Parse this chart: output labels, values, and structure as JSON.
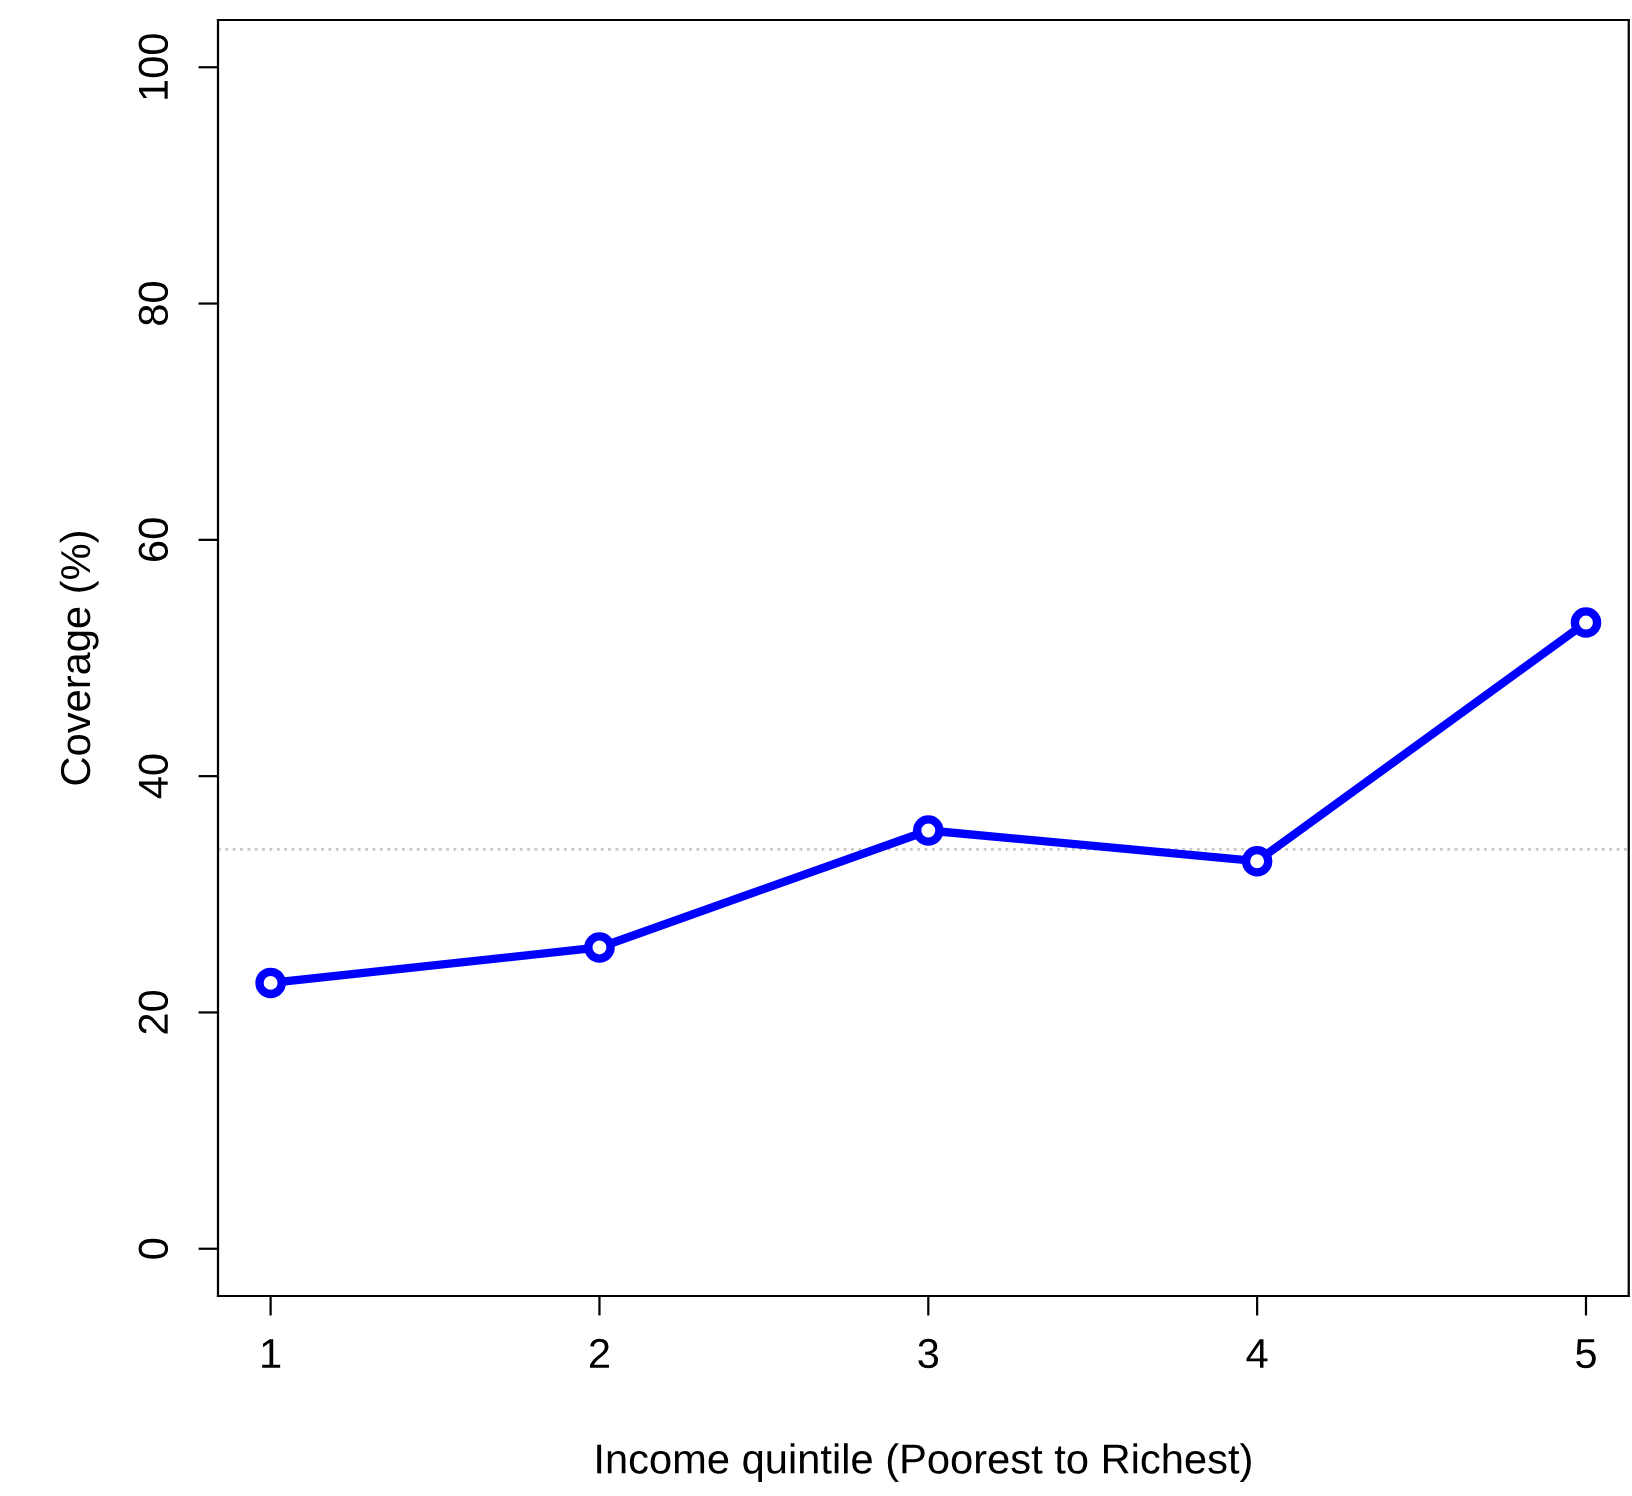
{
  "chart_data": {
    "type": "line",
    "xlabel": "Income quintile (Poorest to Richest)",
    "ylabel": "Coverage (%)",
    "x": [
      1,
      2,
      3,
      4,
      5
    ],
    "series": [
      {
        "color": "#0000ff",
        "values": [
          22.5,
          25.5,
          35.4,
          32.8,
          53.0
        ]
      }
    ],
    "xlim": [
      0.84,
      5.13
    ],
    "xticks": [
      1,
      2,
      3,
      4,
      5
    ],
    "ylim": [
      -4,
      104
    ],
    "yticks": [
      0,
      20,
      40,
      60,
      80,
      100
    ],
    "ref_lines": [
      {
        "axis": "y",
        "value": 33.8,
        "color": "#c8c8c8",
        "line_style": "dotted"
      }
    ],
    "marker": "circle",
    "line_style": "solid",
    "grid": false,
    "legend": false
  }
}
